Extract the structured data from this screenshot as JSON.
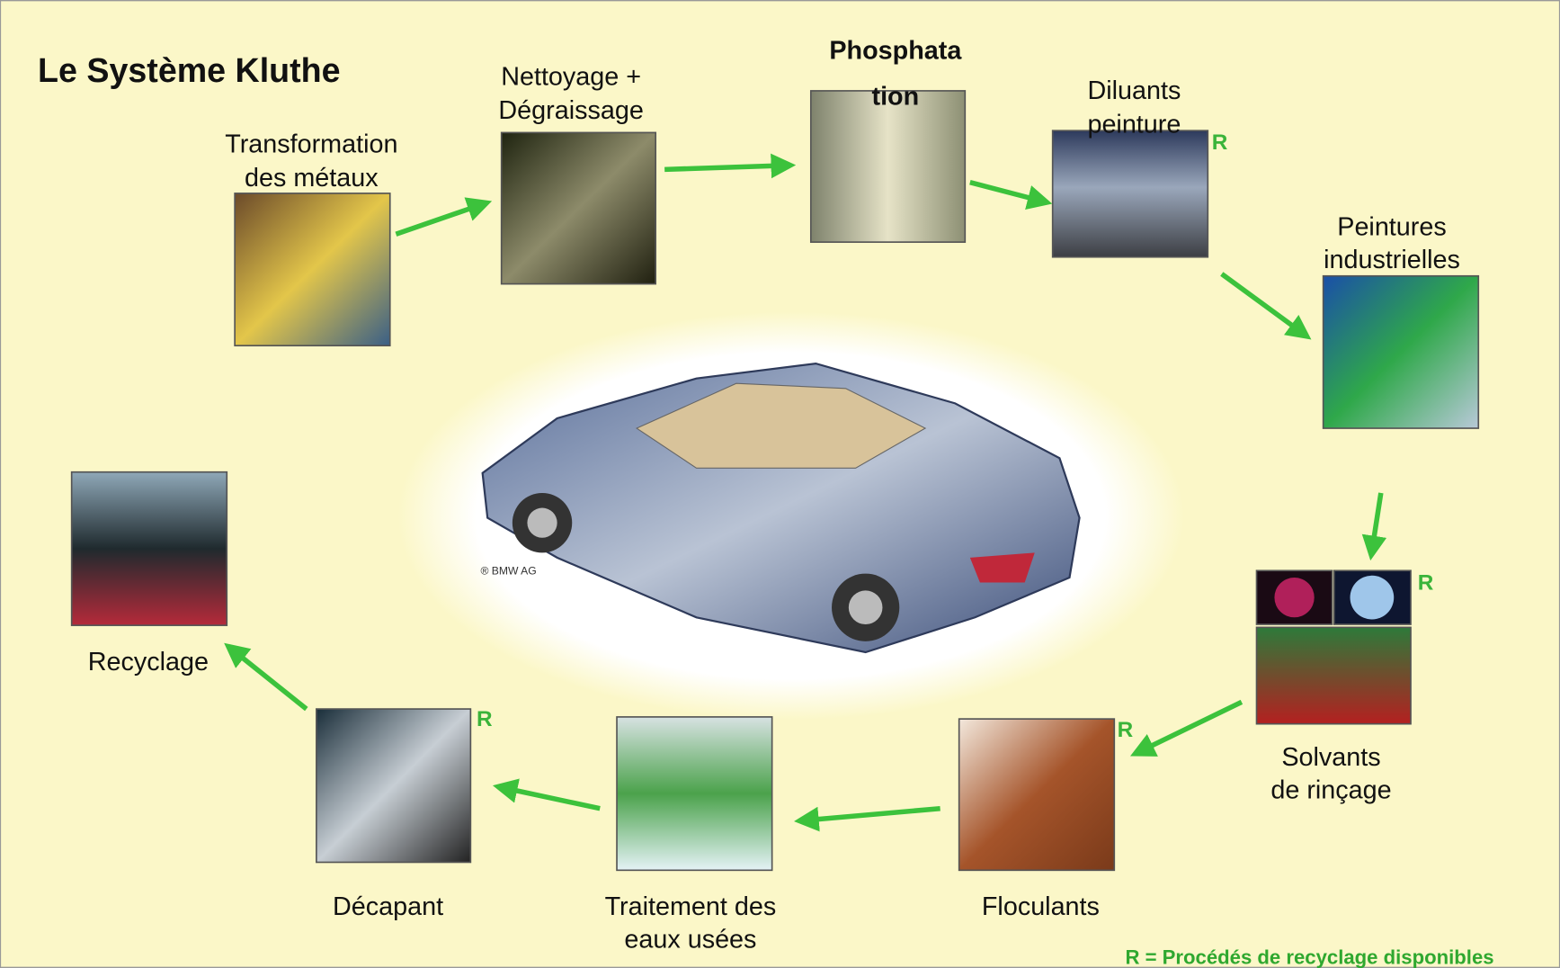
{
  "title": "Le Système Kluthe",
  "nodes": [
    {
      "label_lines": [
        "Transformation",
        "des métaux"
      ]
    },
    {
      "label_lines": [
        "Nettoyage +",
        "Dégraissage"
      ]
    },
    {
      "label_lines": [
        "Phosphata",
        "tion"
      ]
    },
    {
      "label_lines": [
        "Diluants",
        "peinture"
      ],
      "recycle_mark": "R"
    },
    {
      "label_lines": [
        "Peintures",
        "industrielles"
      ]
    },
    {
      "label_lines": [
        "Solvants",
        "de rinçage"
      ],
      "recycle_mark": "R"
    },
    {
      "label_lines": [
        "Floculants"
      ],
      "recycle_mark": "R"
    },
    {
      "label_lines": [
        "Traitement des",
        "eaux usées"
      ]
    },
    {
      "label_lines": [
        "Décapant"
      ],
      "recycle_mark": "R"
    },
    {
      "label_lines": [
        "Recyclage"
      ]
    }
  ],
  "image_credit": "® BMW AG",
  "legend": "R = Procédés de recyclage disponibles"
}
